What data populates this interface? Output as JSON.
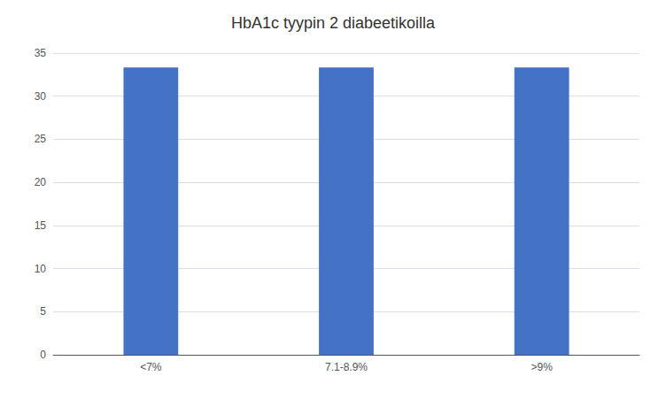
{
  "chart_data": {
    "type": "bar",
    "title": "HbA1c tyypin 2 diabeetikoilla",
    "categories": [
      "<7%",
      "7.1-8.9%",
      ">9%"
    ],
    "values": [
      33.33,
      33.33,
      33.33
    ],
    "color": "#4472C4",
    "ylim": [
      0,
      35
    ],
    "yticks": [
      0,
      5,
      10,
      15,
      20,
      25,
      30,
      35
    ],
    "grid": true
  }
}
